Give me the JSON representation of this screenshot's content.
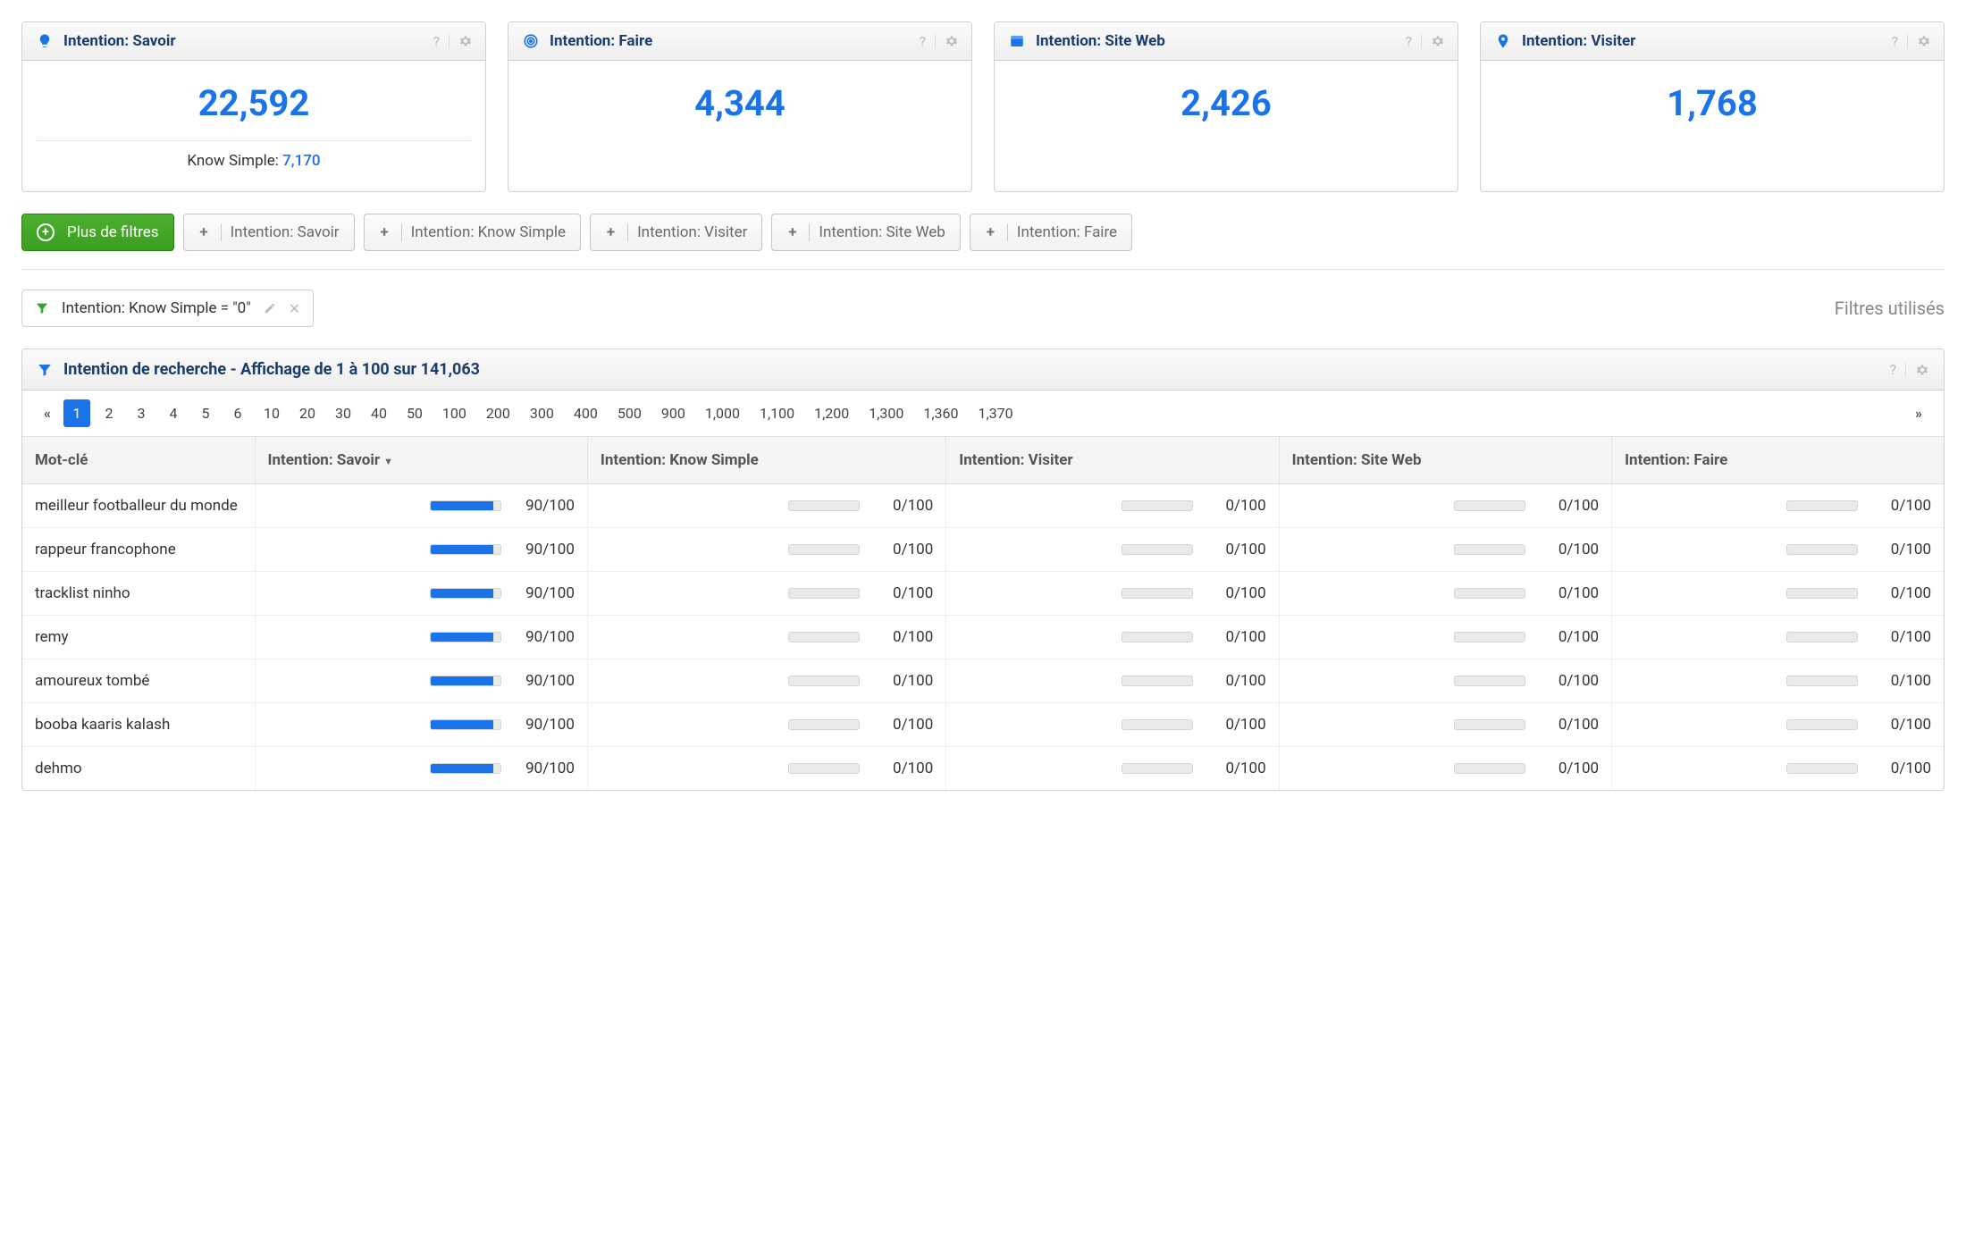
{
  "colors": {
    "accent": "#1a73e8",
    "green": "#3a9e1f",
    "header_text": "#1a3d6d",
    "muted": "#888"
  },
  "cards": [
    {
      "id": "savoir",
      "title": "Intention: Savoir",
      "value": "22,592",
      "sub_label": "Know Simple:",
      "sub_value": "7,170"
    },
    {
      "id": "faire",
      "title": "Intention: Faire",
      "value": "4,344"
    },
    {
      "id": "siteweb",
      "title": "Intention: Site Web",
      "value": "2,426"
    },
    {
      "id": "visiter",
      "title": "Intention: Visiter",
      "value": "1,768"
    }
  ],
  "filter_buttons": {
    "main": "Plus de filtres",
    "items": [
      "Intention: Savoir",
      "Intention: Know Simple",
      "Intention: Visiter",
      "Intention: Site Web",
      "Intention: Faire"
    ]
  },
  "active_filter": "Intention: Know Simple = \"0\"",
  "filters_used_label": "Filtres utilisés",
  "panel_title": "Intention de recherche - Affichage de 1 à 100 sur 141,063",
  "pagination": {
    "active": "1",
    "pages": [
      "1",
      "2",
      "3",
      "4",
      "5",
      "6",
      "10",
      "20",
      "30",
      "40",
      "50",
      "100",
      "200",
      "300",
      "400",
      "500",
      "900",
      "1,000",
      "1,100",
      "1,200",
      "1,300",
      "1,360",
      "1,370"
    ]
  },
  "table": {
    "columns": [
      "Mot-clé",
      "Intention: Savoir",
      "Intention: Know Simple",
      "Intention: Visiter",
      "Intention: Site Web",
      "Intention: Faire"
    ],
    "sorted_col": 1,
    "rows": [
      {
        "kw": "meilleur footballeur du monde",
        "scores": [
          90,
          0,
          0,
          0,
          0
        ]
      },
      {
        "kw": "rappeur francophone",
        "scores": [
          90,
          0,
          0,
          0,
          0
        ]
      },
      {
        "kw": "tracklist ninho",
        "scores": [
          90,
          0,
          0,
          0,
          0
        ]
      },
      {
        "kw": "remy",
        "scores": [
          90,
          0,
          0,
          0,
          0
        ]
      },
      {
        "kw": "amoureux tombé",
        "scores": [
          90,
          0,
          0,
          0,
          0
        ]
      },
      {
        "kw": "booba kaaris kalash",
        "scores": [
          90,
          0,
          0,
          0,
          0
        ]
      },
      {
        "kw": "dehmo",
        "scores": [
          90,
          0,
          0,
          0,
          0
        ]
      }
    ]
  }
}
